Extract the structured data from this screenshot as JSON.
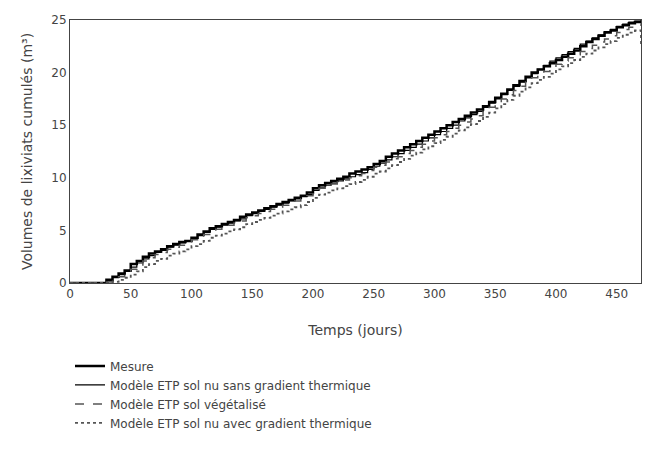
{
  "chart_data": {
    "type": "step",
    "xlabel": "Temps (jours)",
    "ylabel": "Volumes de lixiviats cumulés (m³)",
    "xlim": [
      0,
      470
    ],
    "ylim": [
      0,
      25
    ],
    "xticks": [
      0,
      50,
      100,
      150,
      200,
      250,
      300,
      350,
      400,
      450
    ],
    "yticks": [
      0,
      5,
      10,
      15,
      20,
      25
    ],
    "grid": false,
    "legend": "bottom",
    "x": [
      0,
      25,
      30,
      35,
      40,
      45,
      50,
      55,
      60,
      65,
      70,
      75,
      80,
      85,
      90,
      95,
      100,
      105,
      110,
      115,
      120,
      125,
      130,
      135,
      140,
      145,
      150,
      155,
      160,
      165,
      170,
      175,
      180,
      185,
      190,
      195,
      200,
      205,
      210,
      215,
      220,
      225,
      230,
      235,
      240,
      245,
      250,
      255,
      260,
      265,
      270,
      275,
      280,
      285,
      290,
      295,
      300,
      305,
      310,
      315,
      320,
      325,
      330,
      335,
      340,
      345,
      350,
      355,
      360,
      365,
      370,
      375,
      380,
      385,
      390,
      395,
      400,
      405,
      410,
      415,
      420,
      425,
      430,
      435,
      440,
      445,
      450,
      455,
      460,
      465,
      470
    ],
    "series": [
      {
        "name": "Mesure",
        "color": "#000000",
        "line_style": "solid",
        "values": [
          0,
          0,
          0.3,
          0.6,
          0.9,
          1.2,
          1.8,
          2.1,
          2.5,
          2.8,
          3.0,
          3.2,
          3.5,
          3.7,
          3.9,
          4.0,
          4.3,
          4.6,
          4.9,
          5.2,
          5.4,
          5.6,
          5.8,
          6.0,
          6.3,
          6.5,
          6.7,
          6.9,
          7.1,
          7.3,
          7.5,
          7.7,
          7.9,
          8.1,
          8.3,
          8.6,
          9.0,
          9.3,
          9.5,
          9.7,
          9.9,
          10.1,
          10.4,
          10.6,
          10.8,
          11.0,
          11.3,
          11.6,
          12.0,
          12.3,
          12.6,
          12.9,
          13.2,
          13.5,
          13.8,
          14.1,
          14.4,
          14.7,
          15.0,
          15.3,
          15.6,
          15.9,
          16.2,
          16.5,
          16.8,
          17.2,
          17.6,
          18.0,
          18.4,
          18.8,
          19.2,
          19.6,
          20.0,
          20.3,
          20.6,
          20.9,
          21.2,
          21.5,
          21.8,
          22.1,
          22.5,
          22.9,
          23.2,
          23.5,
          23.8,
          24.0,
          24.3,
          24.5,
          24.7,
          24.8,
          24.9
        ]
      },
      {
        "name": "Modèle ETP sol nu sans gradient thermique",
        "color": "#000000",
        "line_style": "solid",
        "values": [
          0,
          0,
          0.2,
          0.5,
          0.8,
          1.1,
          1.5,
          1.9,
          2.3,
          2.6,
          2.9,
          3.1,
          3.4,
          3.6,
          3.8,
          4.0,
          4.2,
          4.5,
          4.8,
          5.1,
          5.3,
          5.5,
          5.7,
          5.9,
          6.1,
          6.4,
          6.6,
          6.8,
          7.0,
          7.2,
          7.4,
          7.6,
          7.8,
          8.0,
          8.2,
          8.4,
          8.8,
          9.1,
          9.3,
          9.5,
          9.7,
          9.9,
          10.1,
          10.3,
          10.5,
          10.8,
          11.1,
          11.4,
          11.7,
          12.0,
          12.3,
          12.6,
          12.9,
          13.2,
          13.5,
          13.8,
          14.1,
          14.4,
          14.7,
          15.0,
          15.4,
          15.7,
          16.0,
          16.3,
          16.7,
          17.1,
          17.5,
          17.9,
          18.3,
          18.7,
          19.1,
          19.5,
          19.9,
          20.3,
          20.7,
          21.1,
          21.4,
          21.7,
          22.0,
          22.3,
          22.7,
          23.0,
          23.3,
          23.6,
          23.9,
          24.1,
          24.4,
          24.6,
          24.8,
          24.9,
          25.0
        ]
      },
      {
        "name": "Modèle ETP sol végétalisé",
        "color": "#555555",
        "line_style": "dashed",
        "values": [
          0,
          0,
          0.1,
          0.3,
          0.6,
          0.9,
          1.3,
          1.7,
          2.1,
          2.4,
          2.7,
          2.9,
          3.2,
          3.4,
          3.6,
          3.8,
          4.1,
          4.3,
          4.6,
          4.9,
          5.1,
          5.3,
          5.5,
          5.7,
          5.9,
          6.2,
          6.4,
          6.6,
          6.8,
          7.0,
          7.2,
          7.4,
          7.6,
          7.8,
          8.0,
          8.3,
          8.7,
          9.0,
          9.2,
          9.4,
          9.6,
          9.8,
          10.0,
          10.2,
          10.4,
          10.7,
          11.0,
          11.2,
          11.5,
          11.8,
          12.0,
          12.3,
          12.6,
          12.9,
          13.2,
          13.5,
          13.8,
          14.1,
          14.4,
          14.7,
          15.0,
          15.3,
          15.6,
          15.9,
          16.3,
          16.7,
          17.1,
          17.5,
          17.9,
          18.3,
          18.7,
          19.1,
          19.5,
          19.8,
          20.1,
          20.4,
          20.8,
          21.1,
          21.4,
          21.7,
          22.0,
          22.3,
          22.6,
          22.9,
          23.2,
          23.5,
          23.8,
          24.1,
          24.3,
          24.5,
          24.7
        ]
      },
      {
        "name": "Modèle ETP sol nu avec gradient thermique",
        "color": "#555555",
        "line_style": "dotted",
        "values": [
          0,
          0,
          0,
          0.1,
          0.3,
          0.5,
          0.8,
          1.1,
          1.5,
          1.8,
          2.1,
          2.3,
          2.6,
          2.8,
          3.0,
          3.2,
          3.5,
          3.7,
          4.0,
          4.3,
          4.5,
          4.7,
          4.9,
          5.1,
          5.3,
          5.6,
          5.8,
          6.0,
          6.2,
          6.4,
          6.6,
          6.8,
          7.0,
          7.2,
          7.4,
          7.7,
          8.1,
          8.4,
          8.6,
          8.8,
          9.0,
          9.2,
          9.4,
          9.6,
          9.8,
          10.1,
          10.4,
          10.6,
          10.9,
          11.2,
          11.5,
          11.8,
          12.1,
          12.4,
          12.7,
          13.0,
          13.3,
          13.6,
          13.9,
          14.2,
          14.5,
          14.8,
          15.1,
          15.4,
          15.8,
          16.2,
          16.6,
          17.0,
          17.4,
          17.8,
          18.2,
          18.6,
          19.0,
          19.3,
          19.6,
          19.9,
          20.3,
          20.6,
          20.9,
          21.2,
          21.5,
          21.8,
          22.1,
          22.4,
          22.7,
          23.0,
          23.3,
          23.6,
          23.8,
          24.0,
          22.5
        ]
      }
    ]
  }
}
